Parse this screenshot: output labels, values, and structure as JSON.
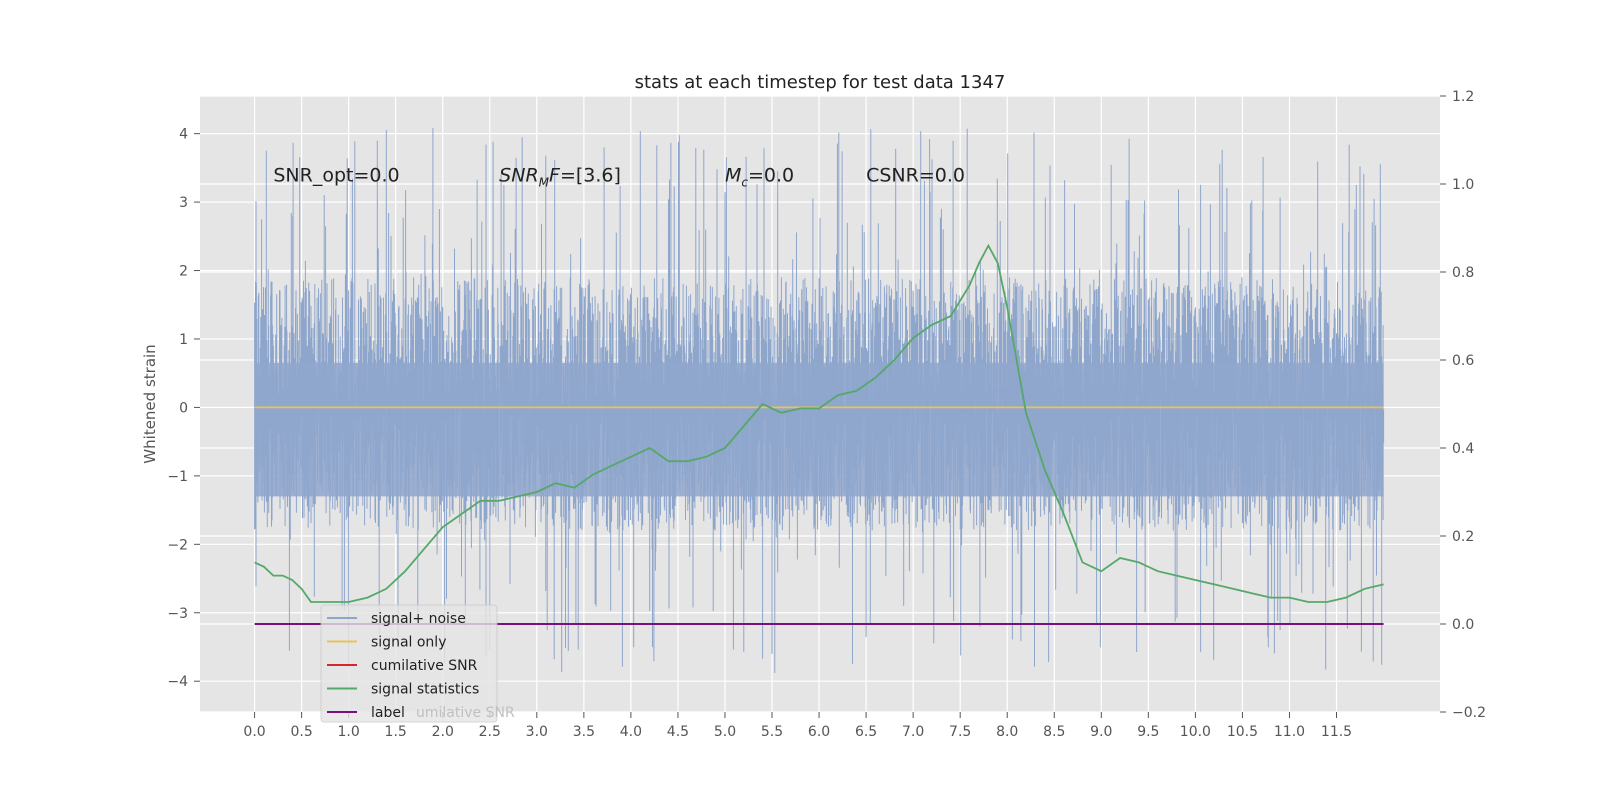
{
  "chart_data": {
    "type": "line",
    "title": "stats at each timestep for test data 1347",
    "xlabel": "",
    "ylabel": "Whitened strain",
    "y2label": "",
    "xlim": [
      -0.58,
      12.6
    ],
    "ylim": [
      -4.45,
      4.55
    ],
    "y2lim": [
      -0.2,
      1.2
    ],
    "xticks": [
      0.0,
      0.5,
      1.0,
      1.5,
      2.0,
      2.5,
      3.0,
      3.5,
      4.0,
      4.5,
      5.0,
      5.5,
      6.0,
      6.5,
      7.0,
      7.5,
      8.0,
      8.5,
      9.0,
      9.5,
      10.0,
      10.5,
      11.0,
      11.5
    ],
    "xtick_labels": [
      "0.0",
      "0.5",
      "1.0",
      "1.5",
      "2.0",
      "2.5",
      "3.0",
      "3.5",
      "4.0",
      "4.5",
      "5.0",
      "5.5",
      "6.0",
      "6.5",
      "7.0",
      "7.5",
      "8.0",
      "8.5",
      "9.0",
      "9.5",
      "10.0",
      "10.5",
      "11.0",
      "11.5"
    ],
    "yticks": [
      4,
      3,
      2,
      1,
      0,
      -1,
      -2,
      -3,
      -4
    ],
    "ytick_labels": [
      "4",
      "3",
      "2",
      "1",
      "0",
      "−1",
      "−2",
      "−3",
      "−4"
    ],
    "y2ticks": [
      1.2,
      1.0,
      0.8,
      0.6,
      0.4,
      0.2,
      0.0,
      -0.2
    ],
    "y2tick_labels": [
      "1.2",
      "1.0",
      "0.8",
      "0.6",
      "0.4",
      "0.2",
      "0.0",
      "−0.2"
    ],
    "grid": true,
    "legend_position": "lower-left",
    "annotations": [
      {
        "text": "SNR_opt=0.0",
        "x": 0.2,
        "y": 3.3
      },
      {
        "text": "SNR_MF=[3.6]",
        "x": 2.6,
        "y": 3.3
      },
      {
        "text": "M_c=0.0",
        "x": 5.0,
        "y": 3.3
      },
      {
        "text": "CSNR=0.0",
        "x": 6.5,
        "y": 3.3
      }
    ],
    "series": [
      {
        "name": "signal+ noise",
        "axis": "left",
        "color": "#8fa6cc",
        "kind": "noise",
        "x_range": [
          0.0,
          12.0
        ],
        "core_range": [
          -1.8,
          1.9
        ],
        "spike_range": [
          -4.0,
          4.1
        ]
      },
      {
        "name": "signal only",
        "axis": "left",
        "color": "#ecc256",
        "x": [
          0.0,
          12.0
        ],
        "y": [
          0.0,
          0.0
        ]
      },
      {
        "name": "cumilative SNR",
        "axis": "right",
        "color": "#d62728",
        "x": [],
        "y": []
      },
      {
        "name": "signal statistics",
        "axis": "right",
        "color": "#55a868",
        "x": [
          0.0,
          0.1,
          0.2,
          0.3,
          0.4,
          0.5,
          0.6,
          0.8,
          1.0,
          1.2,
          1.4,
          1.6,
          1.8,
          2.0,
          2.2,
          2.4,
          2.6,
          2.8,
          3.0,
          3.2,
          3.4,
          3.6,
          3.8,
          4.0,
          4.2,
          4.4,
          4.6,
          4.8,
          5.0,
          5.2,
          5.4,
          5.6,
          5.8,
          6.0,
          6.2,
          6.4,
          6.6,
          6.8,
          7.0,
          7.2,
          7.4,
          7.6,
          7.7,
          7.8,
          7.9,
          8.0,
          8.2,
          8.4,
          8.6,
          8.8,
          9.0,
          9.2,
          9.4,
          9.6,
          9.8,
          10.0,
          10.2,
          10.4,
          10.6,
          10.8,
          11.0,
          11.2,
          11.4,
          11.6,
          11.8,
          12.0
        ],
        "y": [
          0.14,
          0.13,
          0.11,
          0.11,
          0.1,
          0.08,
          0.05,
          0.05,
          0.05,
          0.06,
          0.08,
          0.12,
          0.17,
          0.22,
          0.25,
          0.28,
          0.28,
          0.29,
          0.3,
          0.32,
          0.31,
          0.34,
          0.36,
          0.38,
          0.4,
          0.37,
          0.37,
          0.38,
          0.4,
          0.45,
          0.5,
          0.48,
          0.49,
          0.49,
          0.52,
          0.53,
          0.56,
          0.6,
          0.65,
          0.68,
          0.7,
          0.77,
          0.82,
          0.86,
          0.82,
          0.72,
          0.48,
          0.35,
          0.25,
          0.14,
          0.12,
          0.15,
          0.14,
          0.12,
          0.11,
          0.1,
          0.09,
          0.08,
          0.07,
          0.06,
          0.06,
          0.05,
          0.05,
          0.06,
          0.08,
          0.09
        ]
      },
      {
        "name": "label",
        "axis": "right",
        "color": "#7b0f7e",
        "x": [
          0.0,
          12.0
        ],
        "y": [
          0.0,
          0.0
        ]
      }
    ],
    "legend_entries": [
      "signal+ noise",
      "signal only",
      "cumilative SNR",
      "signal statistics",
      "label"
    ],
    "legend_overlap_text": "umilative SNR"
  }
}
